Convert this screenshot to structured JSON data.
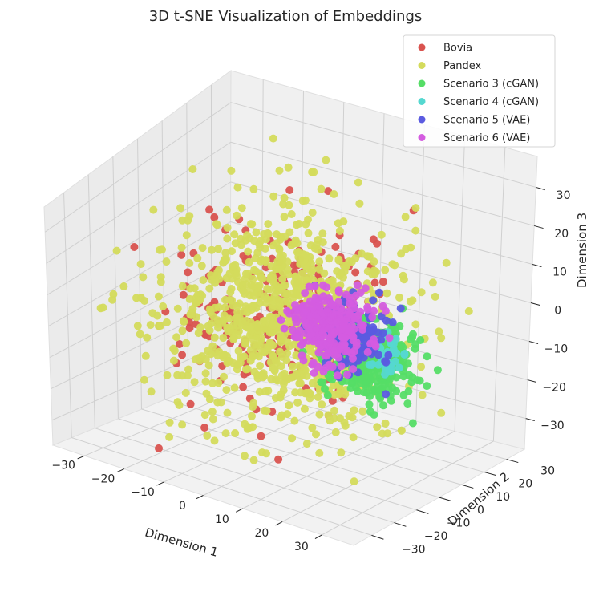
{
  "chart_data": {
    "type": "scatter",
    "title": "3D t-SNE Visualization of Embeddings",
    "xlabel": "Dimension 1",
    "ylabel": "Dimension 2",
    "zlabel": "Dimension 3",
    "x_ticks": [
      "−30",
      "−20",
      "−10",
      "0",
      "10",
      "20",
      "30"
    ],
    "y_ticks": [
      "−30",
      "−20",
      "−10",
      "0",
      "10",
      "20",
      "30"
    ],
    "z_ticks": [
      "−30",
      "−20",
      "−10",
      "0",
      "10",
      "20",
      "30"
    ],
    "legend_position": "top-right",
    "series": [
      {
        "name": "Bovia",
        "color": "#d9534f",
        "center": [
          0,
          -5,
          3
        ],
        "spread": 22,
        "count": 220
      },
      {
        "name": "Pandex",
        "color": "#d4db5c",
        "center": [
          0,
          -3,
          2
        ],
        "spread": 24,
        "count": 900
      },
      {
        "name": "Scenario 3 (cGAN)",
        "color": "#55dd66",
        "center": [
          12,
          16,
          -14
        ],
        "spread": 9,
        "count": 320
      },
      {
        "name": "Scenario 4 (cGAN)",
        "color": "#55d8d0",
        "center": [
          14,
          18,
          -12
        ],
        "spread": 5,
        "count": 40
      },
      {
        "name": "Scenario 5 (VAE)",
        "color": "#5b5be0",
        "center": [
          10,
          10,
          -6
        ],
        "spread": 7,
        "count": 160
      },
      {
        "name": "Scenario 6 (VAE)",
        "color": "#d45ce0",
        "center": [
          6,
          6,
          -3
        ],
        "spread": 8,
        "count": 260
      }
    ]
  }
}
